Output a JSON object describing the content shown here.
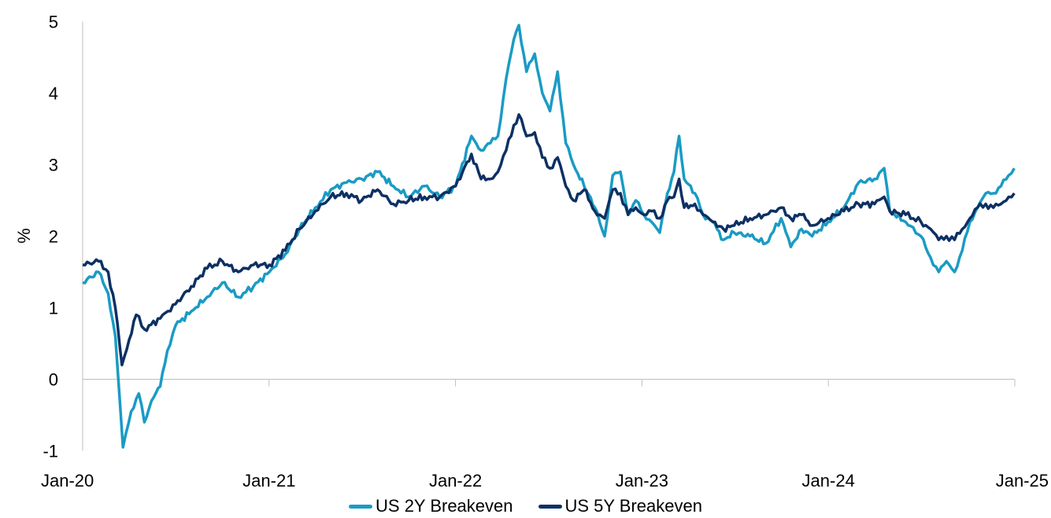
{
  "chart_data": {
    "type": "line",
    "title": "",
    "xlabel": "",
    "ylabel": "%",
    "ylim": [
      -1,
      5
    ],
    "y_ticks": [
      "-1",
      "0",
      "1",
      "2",
      "3",
      "4",
      "5"
    ],
    "x_ticks": [
      "Jan-20",
      "Jan-21",
      "Jan-22",
      "Jan-23",
      "Jan-24",
      "Jan-25"
    ],
    "xlim": [
      "2020-01",
      "2025-01"
    ],
    "grid": false,
    "legend_position": "bottom",
    "series": [
      {
        "name": "US 2Y Breakeven",
        "color": "#1a9bc4",
        "points": [
          [
            "2020-01-01",
            1.35
          ],
          [
            "2020-02-01",
            1.5
          ],
          [
            "2020-02-20",
            1.2
          ],
          [
            "2020-03-05",
            0.6
          ],
          [
            "2020-03-20",
            -0.95
          ],
          [
            "2020-04-05",
            -0.45
          ],
          [
            "2020-04-20",
            -0.2
          ],
          [
            "2020-05-01",
            -0.6
          ],
          [
            "2020-05-15",
            -0.3
          ],
          [
            "2020-06-01",
            -0.1
          ],
          [
            "2020-06-15",
            0.4
          ],
          [
            "2020-07-01",
            0.75
          ],
          [
            "2020-08-01",
            0.95
          ],
          [
            "2020-09-01",
            1.15
          ],
          [
            "2020-10-01",
            1.35
          ],
          [
            "2020-11-01",
            1.15
          ],
          [
            "2020-12-01",
            1.3
          ],
          [
            "2021-01-01",
            1.5
          ],
          [
            "2021-02-01",
            1.75
          ],
          [
            "2021-03-01",
            2.1
          ],
          [
            "2021-04-01",
            2.4
          ],
          [
            "2021-05-01",
            2.65
          ],
          [
            "2021-06-01",
            2.75
          ],
          [
            "2021-07-01",
            2.8
          ],
          [
            "2021-08-01",
            2.9
          ],
          [
            "2021-09-01",
            2.7
          ],
          [
            "2021-10-01",
            2.55
          ],
          [
            "2021-11-01",
            2.7
          ],
          [
            "2021-12-01",
            2.55
          ],
          [
            "2022-01-01",
            2.7
          ],
          [
            "2022-02-01",
            3.4
          ],
          [
            "2022-02-20",
            3.2
          ],
          [
            "2022-03-10",
            3.3
          ],
          [
            "2022-03-25",
            3.4
          ],
          [
            "2022-04-10",
            4.2
          ],
          [
            "2022-04-25",
            4.75
          ],
          [
            "2022-05-05",
            4.95
          ],
          [
            "2022-05-20",
            4.3
          ],
          [
            "2022-06-05",
            4.55
          ],
          [
            "2022-06-20",
            4.0
          ],
          [
            "2022-07-05",
            3.75
          ],
          [
            "2022-07-20",
            4.3
          ],
          [
            "2022-08-05",
            3.3
          ],
          [
            "2022-08-20",
            3.0
          ],
          [
            "2022-09-10",
            2.7
          ],
          [
            "2022-10-01",
            2.4
          ],
          [
            "2022-10-20",
            2.0
          ],
          [
            "2022-11-05",
            2.85
          ],
          [
            "2022-11-20",
            2.9
          ],
          [
            "2022-12-05",
            2.3
          ],
          [
            "2022-12-20",
            2.5
          ],
          [
            "2023-01-05",
            2.3
          ],
          [
            "2023-01-20",
            2.2
          ],
          [
            "2023-02-05",
            2.05
          ],
          [
            "2023-02-20",
            2.6
          ],
          [
            "2023-03-05",
            2.9
          ],
          [
            "2023-03-15",
            3.4
          ],
          [
            "2023-03-25",
            2.8
          ],
          [
            "2023-04-15",
            2.6
          ],
          [
            "2023-05-01",
            2.3
          ],
          [
            "2023-05-20",
            2.2
          ],
          [
            "2023-06-10",
            1.95
          ],
          [
            "2023-07-01",
            2.05
          ],
          [
            "2023-08-01",
            2.0
          ],
          [
            "2023-09-01",
            1.9
          ],
          [
            "2023-10-01",
            2.25
          ],
          [
            "2023-10-20",
            1.85
          ],
          [
            "2023-11-10",
            2.1
          ],
          [
            "2023-12-01",
            2.0
          ],
          [
            "2024-01-01",
            2.2
          ],
          [
            "2024-02-01",
            2.4
          ],
          [
            "2024-03-01",
            2.75
          ],
          [
            "2024-04-01",
            2.8
          ],
          [
            "2024-04-20",
            2.95
          ],
          [
            "2024-05-01",
            2.35
          ],
          [
            "2024-06-01",
            2.2
          ],
          [
            "2024-07-01",
            2.0
          ],
          [
            "2024-07-20",
            1.7
          ],
          [
            "2024-08-05",
            1.5
          ],
          [
            "2024-08-20",
            1.65
          ],
          [
            "2024-09-05",
            1.5
          ],
          [
            "2024-09-20",
            1.8
          ],
          [
            "2024-10-05",
            2.2
          ],
          [
            "2024-10-20",
            2.4
          ],
          [
            "2024-11-05",
            2.6
          ],
          [
            "2024-11-20",
            2.6
          ],
          [
            "2024-12-05",
            2.7
          ],
          [
            "2024-12-20",
            2.85
          ],
          [
            "2024-12-31",
            2.95
          ]
        ]
      },
      {
        "name": "US 5Y Breakeven",
        "color": "#0d3063",
        "points": [
          [
            "2020-01-01",
            1.6
          ],
          [
            "2020-02-01",
            1.65
          ],
          [
            "2020-02-20",
            1.5
          ],
          [
            "2020-03-05",
            1.0
          ],
          [
            "2020-03-18",
            0.2
          ],
          [
            "2020-04-01",
            0.55
          ],
          [
            "2020-04-15",
            0.9
          ],
          [
            "2020-05-01",
            0.7
          ],
          [
            "2020-06-01",
            0.85
          ],
          [
            "2020-07-01",
            1.05
          ],
          [
            "2020-08-01",
            1.3
          ],
          [
            "2020-09-01",
            1.55
          ],
          [
            "2020-10-01",
            1.65
          ],
          [
            "2020-11-01",
            1.5
          ],
          [
            "2020-12-01",
            1.6
          ],
          [
            "2021-01-01",
            1.6
          ],
          [
            "2021-02-01",
            1.8
          ],
          [
            "2021-03-01",
            2.1
          ],
          [
            "2021-04-01",
            2.35
          ],
          [
            "2021-05-01",
            2.55
          ],
          [
            "2021-06-01",
            2.6
          ],
          [
            "2021-07-01",
            2.5
          ],
          [
            "2021-08-01",
            2.65
          ],
          [
            "2021-09-01",
            2.45
          ],
          [
            "2021-10-01",
            2.5
          ],
          [
            "2021-11-01",
            2.55
          ],
          [
            "2021-12-01",
            2.55
          ],
          [
            "2022-01-01",
            2.7
          ],
          [
            "2022-02-01",
            3.15
          ],
          [
            "2022-02-20",
            2.8
          ],
          [
            "2022-03-10",
            2.8
          ],
          [
            "2022-03-25",
            2.9
          ],
          [
            "2022-04-10",
            3.2
          ],
          [
            "2022-04-25",
            3.55
          ],
          [
            "2022-05-05",
            3.7
          ],
          [
            "2022-05-20",
            3.4
          ],
          [
            "2022-06-05",
            3.45
          ],
          [
            "2022-06-20",
            3.1
          ],
          [
            "2022-07-05",
            2.95
          ],
          [
            "2022-07-20",
            3.1
          ],
          [
            "2022-08-05",
            2.7
          ],
          [
            "2022-08-20",
            2.5
          ],
          [
            "2022-09-10",
            2.65
          ],
          [
            "2022-10-01",
            2.35
          ],
          [
            "2022-10-20",
            2.25
          ],
          [
            "2022-11-05",
            2.65
          ],
          [
            "2022-11-20",
            2.6
          ],
          [
            "2022-12-05",
            2.3
          ],
          [
            "2022-12-20",
            2.4
          ],
          [
            "2023-01-05",
            2.3
          ],
          [
            "2023-01-20",
            2.35
          ],
          [
            "2023-02-05",
            2.25
          ],
          [
            "2023-02-20",
            2.5
          ],
          [
            "2023-03-05",
            2.55
          ],
          [
            "2023-03-15",
            2.8
          ],
          [
            "2023-03-25",
            2.4
          ],
          [
            "2023-04-15",
            2.45
          ],
          [
            "2023-05-01",
            2.3
          ],
          [
            "2023-05-20",
            2.2
          ],
          [
            "2023-06-10",
            2.1
          ],
          [
            "2023-07-01",
            2.15
          ],
          [
            "2023-08-01",
            2.25
          ],
          [
            "2023-09-01",
            2.3
          ],
          [
            "2023-10-01",
            2.4
          ],
          [
            "2023-10-20",
            2.25
          ],
          [
            "2023-11-10",
            2.3
          ],
          [
            "2023-12-01",
            2.15
          ],
          [
            "2024-01-01",
            2.25
          ],
          [
            "2024-02-01",
            2.35
          ],
          [
            "2024-03-01",
            2.45
          ],
          [
            "2024-04-01",
            2.45
          ],
          [
            "2024-04-20",
            2.55
          ],
          [
            "2024-05-01",
            2.35
          ],
          [
            "2024-06-01",
            2.3
          ],
          [
            "2024-07-01",
            2.2
          ],
          [
            "2024-07-20",
            2.1
          ],
          [
            "2024-08-05",
            1.95
          ],
          [
            "2024-08-20",
            2.0
          ],
          [
            "2024-09-05",
            1.95
          ],
          [
            "2024-09-20",
            2.1
          ],
          [
            "2024-10-05",
            2.25
          ],
          [
            "2024-10-20",
            2.4
          ],
          [
            "2024-11-05",
            2.45
          ],
          [
            "2024-11-20",
            2.4
          ],
          [
            "2024-12-05",
            2.45
          ],
          [
            "2024-12-20",
            2.55
          ],
          [
            "2024-12-31",
            2.6
          ]
        ]
      }
    ]
  }
}
